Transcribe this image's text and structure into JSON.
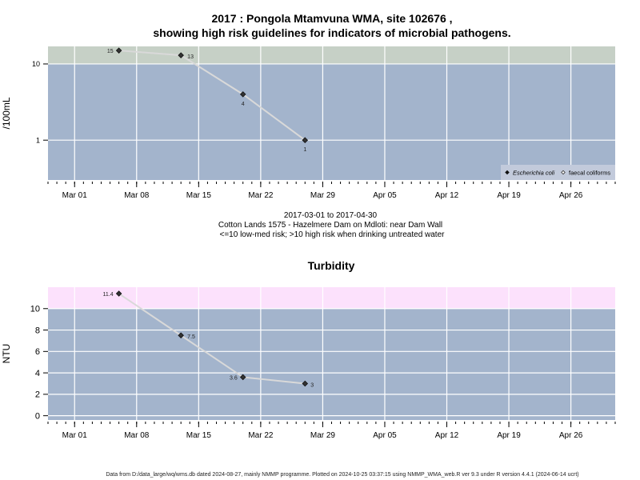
{
  "header": {
    "title_line1": "2017 : Pongola Mtamvuna WMA, site 102676 ,",
    "title_line2": "showing high risk guidelines for indicators of microbial pathogens."
  },
  "subtitle": {
    "line1": "2017-03-01 to 2017-04-30",
    "line2": "Cotton Lands 1575 - Hazelmere Dam on Mdloti: near Dam Wall",
    "line3": "<=10 low-med risk; >10 high risk when drinking untreated water"
  },
  "footer": {
    "text": "Data from D:/data_large/wq/wms.db dated 2024-08-27, mainly NMMP programme. Plotted on 2024-10-25 03:37:15 using NMMP_WMA_web.R ver 9.3 under R version 4.4.1 (2024-06-14 ucrt)"
  },
  "colors": {
    "plot_bg": "#a3b4cc",
    "microbial_high_risk_band": "#c6d0c6",
    "turbidity_high_band": "#fce1fc",
    "gridline": "#ffffff",
    "series_line": "#d9d9d9",
    "marker": "#333333"
  },
  "chart_data": [
    {
      "type": "line",
      "title": "",
      "ylabel": "/100mL",
      "xlabel": "",
      "y_scale": "log",
      "ylim": [
        0.3,
        17
      ],
      "xlim": [
        "2017-02-26",
        "2017-05-01"
      ],
      "y_ticks": [
        1,
        10
      ],
      "y_tick_labels": [
        "1",
        "10"
      ],
      "x_ticks": [
        "2017-03-01",
        "2017-03-08",
        "2017-03-15",
        "2017-03-22",
        "2017-03-29",
        "2017-04-05",
        "2017-04-12",
        "2017-04-19",
        "2017-04-26"
      ],
      "x_tick_labels": [
        "Mar 01",
        "Mar 08",
        "Mar 15",
        "Mar 22",
        "Mar 29",
        "Apr 05",
        "Apr 12",
        "Apr 19",
        "Apr 26"
      ],
      "grid": true,
      "guideline_band": {
        "from": 10,
        "to": 17,
        "meaning": "high risk"
      },
      "legend": {
        "placement": "bottom-right",
        "entries": [
          "Escherichia coli",
          "faecal coliforms"
        ]
      },
      "series": [
        {
          "name": "Escherichia coli",
          "marker": "filled-diamond",
          "points": [
            {
              "x": "2017-03-06",
              "y": 15,
              "label": "15"
            },
            {
              "x": "2017-03-13",
              "y": 13,
              "label": "13"
            },
            {
              "x": "2017-03-20",
              "y": 4,
              "label": "4"
            },
            {
              "x": "2017-03-27",
              "y": 1,
              "label": "1"
            }
          ]
        }
      ]
    },
    {
      "type": "line",
      "title": "Turbidity",
      "ylabel": "NTU",
      "xlabel": "",
      "y_scale": "linear",
      "ylim": [
        -0.4,
        12
      ],
      "xlim": [
        "2017-02-26",
        "2017-05-01"
      ],
      "y_ticks": [
        0,
        2,
        4,
        6,
        8,
        10
      ],
      "y_tick_labels": [
        "0",
        "2",
        "4",
        "6",
        "8",
        "10"
      ],
      "x_ticks": [
        "2017-03-01",
        "2017-03-08",
        "2017-03-15",
        "2017-03-22",
        "2017-03-29",
        "2017-04-05",
        "2017-04-12",
        "2017-04-19",
        "2017-04-26"
      ],
      "x_tick_labels": [
        "Mar 01",
        "Mar 08",
        "Mar 15",
        "Mar 22",
        "Mar 29",
        "Apr 05",
        "Apr 12",
        "Apr 19",
        "Apr 26"
      ],
      "grid": true,
      "guideline_band": {
        "from": 10,
        "to": 12
      },
      "series": [
        {
          "marker": "filled-diamond",
          "points": [
            {
              "x": "2017-03-06",
              "y": 11.4,
              "label": "11.4"
            },
            {
              "x": "2017-03-13",
              "y": 7.5,
              "label": "7.5"
            },
            {
              "x": "2017-03-20",
              "y": 3.6,
              "label": "3.6"
            },
            {
              "x": "2017-03-27",
              "y": 3,
              "label": "3"
            }
          ]
        }
      ]
    }
  ]
}
